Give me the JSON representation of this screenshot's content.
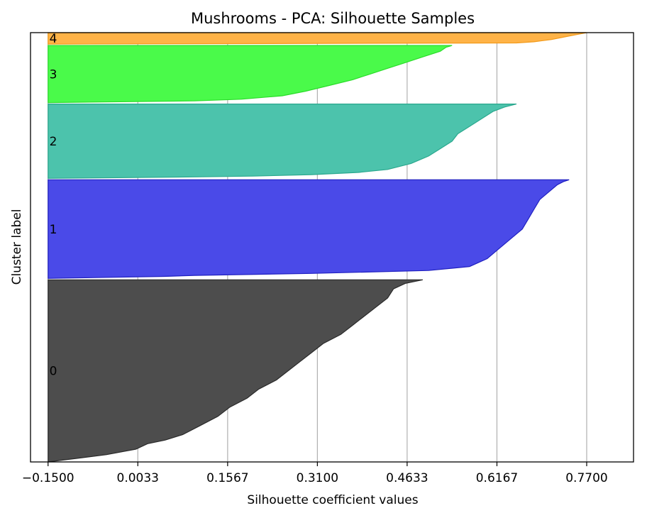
{
  "chart_data": {
    "type": "area",
    "title": "Mushrooms - PCA: Silhouette Samples",
    "xlabel": "Silhouette coefficient values",
    "ylabel": "Cluster label",
    "xlim": [
      -0.18,
      0.85
    ],
    "x_ticks": [
      -0.15,
      0.0033,
      0.1567,
      0.31,
      0.4633,
      0.6167,
      0.77
    ],
    "x_tick_labels": [
      "−0.1500",
      "0.0033",
      "0.1567",
      "0.3100",
      "0.4633",
      "0.6167",
      "0.7700"
    ],
    "grid": "vertical",
    "clusters": [
      {
        "label": "0",
        "color": "#4d4d4d",
        "edge": "#2a2a2a",
        "size": 255,
        "silhouette_profile": [
          [
            0,
            0.49
          ],
          [
            0.02,
            0.46
          ],
          [
            0.05,
            0.44
          ],
          [
            0.1,
            0.43
          ],
          [
            0.15,
            0.41
          ],
          [
            0.2,
            0.39
          ],
          [
            0.25,
            0.37
          ],
          [
            0.3,
            0.35
          ],
          [
            0.35,
            0.32
          ],
          [
            0.4,
            0.3
          ],
          [
            0.45,
            0.28
          ],
          [
            0.5,
            0.26
          ],
          [
            0.55,
            0.24
          ],
          [
            0.6,
            0.21
          ],
          [
            0.65,
            0.19
          ],
          [
            0.7,
            0.16
          ],
          [
            0.75,
            0.14
          ],
          [
            0.8,
            0.11
          ],
          [
            0.85,
            0.08
          ],
          [
            0.88,
            0.05
          ],
          [
            0.9,
            0.02
          ],
          [
            0.93,
            0.0
          ],
          [
            0.96,
            -0.05
          ],
          [
            0.98,
            -0.1
          ],
          [
            1.0,
            -0.15
          ]
        ]
      },
      {
        "label": "1",
        "color": "#4a4ae8",
        "edge": "#2020c0",
        "size": 138,
        "silhouette_profile": [
          [
            0,
            0.74
          ],
          [
            0.02,
            0.73
          ],
          [
            0.05,
            0.72
          ],
          [
            0.1,
            0.71
          ],
          [
            0.15,
            0.7
          ],
          [
            0.2,
            0.69
          ],
          [
            0.3,
            0.68
          ],
          [
            0.4,
            0.67
          ],
          [
            0.5,
            0.66
          ],
          [
            0.6,
            0.64
          ],
          [
            0.7,
            0.62
          ],
          [
            0.8,
            0.6
          ],
          [
            0.88,
            0.57
          ],
          [
            0.92,
            0.5
          ],
          [
            0.95,
            0.3
          ],
          [
            0.97,
            0.1
          ],
          [
            0.98,
            0.05
          ],
          [
            1.0,
            -0.15
          ]
        ]
      },
      {
        "label": "2",
        "color": "#4cc3ac",
        "edge": "#2aa88e",
        "size": 104,
        "silhouette_profile": [
          [
            0,
            0.65
          ],
          [
            0.04,
            0.63
          ],
          [
            0.1,
            0.61
          ],
          [
            0.2,
            0.59
          ],
          [
            0.3,
            0.57
          ],
          [
            0.4,
            0.55
          ],
          [
            0.5,
            0.54
          ],
          [
            0.6,
            0.52
          ],
          [
            0.7,
            0.5
          ],
          [
            0.8,
            0.47
          ],
          [
            0.88,
            0.43
          ],
          [
            0.92,
            0.38
          ],
          [
            0.95,
            0.3
          ],
          [
            0.97,
            0.2
          ],
          [
            0.98,
            0.1
          ],
          [
            1.0,
            -0.15
          ]
        ]
      },
      {
        "label": "3",
        "color": "#4afa4a",
        "edge": "#2adc2a",
        "size": 80,
        "silhouette_profile": [
          [
            0,
            0.54
          ],
          [
            0.03,
            0.53
          ],
          [
            0.1,
            0.52
          ],
          [
            0.2,
            0.49
          ],
          [
            0.3,
            0.46
          ],
          [
            0.4,
            0.43
          ],
          [
            0.5,
            0.4
          ],
          [
            0.6,
            0.37
          ],
          [
            0.7,
            0.33
          ],
          [
            0.8,
            0.29
          ],
          [
            0.88,
            0.25
          ],
          [
            0.94,
            0.18
          ],
          [
            0.97,
            0.1
          ],
          [
            1.0,
            -0.15
          ]
        ]
      },
      {
        "label": "4",
        "color": "#ffb347",
        "edge": "#f29a1a",
        "size": 16,
        "silhouette_profile": [
          [
            0,
            0.77
          ],
          [
            0.2,
            0.75
          ],
          [
            0.4,
            0.73
          ],
          [
            0.6,
            0.71
          ],
          [
            0.8,
            0.68
          ],
          [
            0.9,
            0.65
          ],
          [
            1.0,
            -0.15
          ]
        ]
      }
    ]
  }
}
